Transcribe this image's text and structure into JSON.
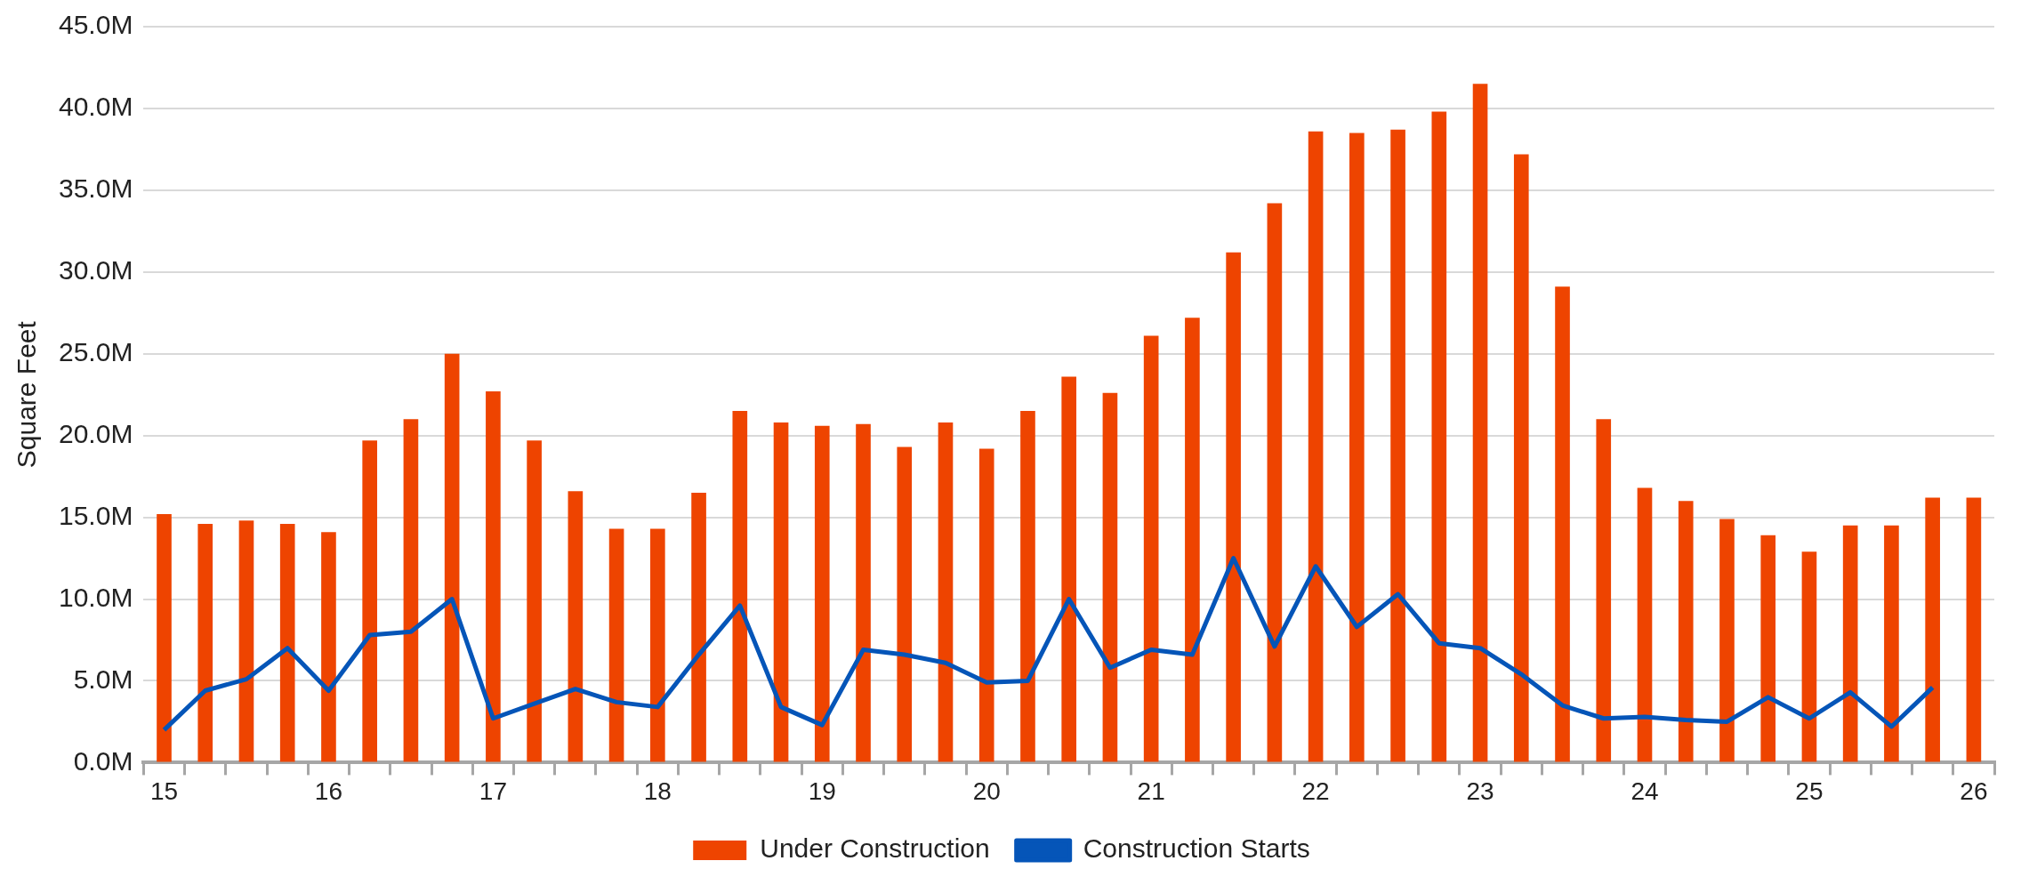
{
  "chart_data": {
    "type": "bar",
    "ylabel": "Square Feet",
    "categories": [
      "15",
      null,
      null,
      null,
      "16",
      null,
      null,
      null,
      "17",
      null,
      null,
      null,
      "18",
      null,
      null,
      null,
      "19",
      null,
      null,
      null,
      "20",
      null,
      null,
      null,
      "21",
      null,
      null,
      null,
      "22",
      null,
      null,
      null,
      "23",
      null,
      null,
      null,
      "24",
      null,
      null,
      null,
      "25",
      null,
      null,
      null,
      "26"
    ],
    "series": [
      {
        "name": "Under Construction",
        "color": "#ee4400",
        "values": [
          15.2,
          14.6,
          14.8,
          14.6,
          14.1,
          19.7,
          21.0,
          25.0,
          22.7,
          19.7,
          16.6,
          14.3,
          14.3,
          16.5,
          21.5,
          20.8,
          20.6,
          20.7,
          19.3,
          20.8,
          19.2,
          21.5,
          23.6,
          22.6,
          26.1,
          27.2,
          31.2,
          34.2,
          38.6,
          38.5,
          38.7,
          39.8,
          41.5,
          37.2,
          29.1,
          21.0,
          16.8,
          16.0,
          14.9,
          13.9,
          12.9,
          14.5,
          14.5,
          16.2,
          16.2
        ]
      },
      {
        "name": "Construction Starts",
        "type": "line",
        "color": "#0555b8",
        "values": [
          2.0,
          4.4,
          5.1,
          7.0,
          4.4,
          7.8,
          8.0,
          10.0,
          2.7,
          3.6,
          4.5,
          3.7,
          3.4,
          6.6,
          9.6,
          3.4,
          2.3,
          6.9,
          6.6,
          6.1,
          4.9,
          5.0,
          10.0,
          5.8,
          6.9,
          6.6,
          12.5,
          7.1,
          12.0,
          8.3,
          10.3,
          7.3,
          7.0,
          5.4,
          3.5,
          2.7,
          2.8,
          2.6,
          2.5,
          4.0,
          2.7,
          4.3,
          2.2,
          4.6,
          null
        ]
      }
    ],
    "ylim": [
      0,
      45
    ],
    "yticks": [
      {
        "value": 0,
        "label": "0.0M"
      },
      {
        "value": 5,
        "label": "5.0M"
      },
      {
        "value": 10,
        "label": "10.0M"
      },
      {
        "value": 15,
        "label": "15.0M"
      },
      {
        "value": 20,
        "label": "20.0M"
      },
      {
        "value": 25,
        "label": "25.0M"
      },
      {
        "value": 30,
        "label": "30.0M"
      },
      {
        "value": 35,
        "label": "35.0M"
      },
      {
        "value": 40,
        "label": "40.0M"
      },
      {
        "value": 45,
        "label": "45.0M"
      }
    ],
    "grid": "y",
    "legend": "bottom",
    "marker": "none",
    "line_style": "solid"
  }
}
